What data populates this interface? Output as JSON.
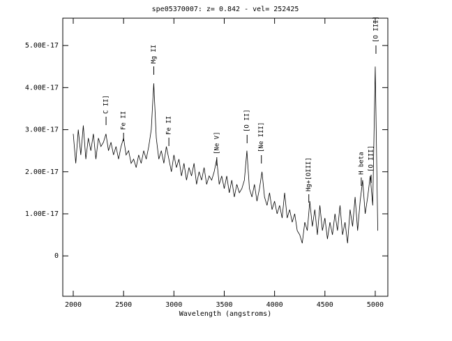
{
  "chart_data": {
    "type": "line",
    "title": "spe05370007: z= 0.842 - vel= 252425",
    "x_label": "Wavelength (angstroms)",
    "color": "#000000",
    "xlim": [
      1896,
      5125
    ],
    "ylim": [
      -9.6e-18,
      5.65e-17
    ],
    "xticks": [
      2000,
      2500,
      3000,
      3500,
      4000,
      4500,
      5000
    ],
    "yticks": [
      0,
      {
        "value": 1e-17,
        "label": "1.00E-17"
      },
      {
        "value": 2e-17,
        "label": "2.00E-17"
      },
      {
        "value": 3e-17,
        "label": "3.00E-17"
      },
      {
        "value": 4e-17,
        "label": "4.00E-17"
      },
      {
        "value": 5e-17,
        "label": "5.00E-17"
      }
    ],
    "annotations": [
      {
        "text": "C II]",
        "x": 2326
      },
      {
        "text": "Fe II",
        "x": 2500
      },
      {
        "text": "Mg II",
        "x": 2800
      },
      {
        "text": "Fe II",
        "x": 2950
      },
      {
        "text": "[Ne V]",
        "x": 3426
      },
      {
        "text": "[O II]",
        "x": 3727
      },
      {
        "text": "[Ne III]",
        "x": 3869
      },
      {
        "text": "Hg+[OIII]",
        "x": 4340
      },
      {
        "text": "H beta",
        "x": 4861
      },
      {
        "text": "[O III]",
        "x": 4959
      },
      {
        "text": "[O III]",
        "x": 5007
      }
    ],
    "x": [
      2000,
      2025,
      2050,
      2075,
      2100,
      2125,
      2150,
      2175,
      2200,
      2225,
      2250,
      2275,
      2300,
      2325,
      2350,
      2375,
      2400,
      2425,
      2450,
      2475,
      2500,
      2525,
      2550,
      2575,
      2600,
      2625,
      2650,
      2675,
      2700,
      2725,
      2750,
      2775,
      2800,
      2825,
      2850,
      2875,
      2900,
      2925,
      2950,
      2975,
      3000,
      3025,
      3050,
      3075,
      3100,
      3125,
      3150,
      3175,
      3200,
      3225,
      3250,
      3275,
      3300,
      3325,
      3350,
      3375,
      3400,
      3425,
      3450,
      3475,
      3500,
      3525,
      3550,
      3575,
      3600,
      3625,
      3650,
      3675,
      3700,
      3725,
      3750,
      3775,
      3800,
      3825,
      3850,
      3875,
      3900,
      3925,
      3950,
      3975,
      4000,
      4025,
      4050,
      4075,
      4100,
      4125,
      4150,
      4175,
      4200,
      4225,
      4250,
      4275,
      4300,
      4325,
      4350,
      4375,
      4400,
      4425,
      4450,
      4475,
      4500,
      4525,
      4550,
      4575,
      4600,
      4625,
      4650,
      4675,
      4700,
      4725,
      4750,
      4775,
      4800,
      4825,
      4850,
      4875,
      4900,
      4925,
      4950,
      4975,
      5000,
      5025
    ],
    "values": [
      2.9e-17,
      2.2e-17,
      3e-17,
      2.4e-17,
      3.1e-17,
      2.3e-17,
      2.8e-17,
      2.5e-17,
      2.9e-17,
      2.3e-17,
      2.8e-17,
      2.6e-17,
      2.7e-17,
      2.9e-17,
      2.5e-17,
      2.7e-17,
      2.4e-17,
      2.6e-17,
      2.3e-17,
      2.6e-17,
      2.8e-17,
      2.4e-17,
      2.5e-17,
      2.2e-17,
      2.3e-17,
      2.1e-17,
      2.4e-17,
      2.2e-17,
      2.5e-17,
      2.3e-17,
      2.6e-17,
      3e-17,
      4.1e-17,
      2.8e-17,
      2.3e-17,
      2.5e-17,
      2.2e-17,
      2.6e-17,
      2.3e-17,
      2e-17,
      2.4e-17,
      2.1e-17,
      2.3e-17,
      1.9e-17,
      2.2e-17,
      1.8e-17,
      2.1e-17,
      1.9e-17,
      2.2e-17,
      1.7e-17,
      2e-17,
      1.8e-17,
      2.1e-17,
      1.7e-17,
      1.9e-17,
      1.8e-17,
      2e-17,
      2.3e-17,
      1.7e-17,
      1.9e-17,
      1.6e-17,
      1.9e-17,
      1.5e-17,
      1.8e-17,
      1.4e-17,
      1.7e-17,
      1.5e-17,
      1.6e-17,
      1.8e-17,
      2.5e-17,
      1.6e-17,
      1.4e-17,
      1.7e-17,
      1.3e-17,
      1.6e-17,
      2e-17,
      1.4e-17,
      1.2e-17,
      1.5e-17,
      1.1e-17,
      1.3e-17,
      1e-17,
      1.2e-17,
      9e-18,
      1.5e-17,
      9e-18,
      1.1e-17,
      8e-18,
      1e-17,
      6e-18,
      5e-18,
      3e-18,
      8e-18,
      6e-18,
      1.3e-17,
      7e-18,
      1.1e-17,
      5e-18,
      1.2e-17,
      6e-18,
      9e-18,
      4e-18,
      8e-18,
      5e-18,
      1e-17,
      6e-18,
      1.2e-17,
      5e-18,
      8e-18,
      3e-18,
      1.1e-17,
      7e-18,
      1.4e-17,
      6e-18,
      1.3e-17,
      1.8e-17,
      1e-17,
      1.4e-17,
      1.9e-17,
      1.2e-17,
      4.5e-17,
      6e-18
    ]
  }
}
